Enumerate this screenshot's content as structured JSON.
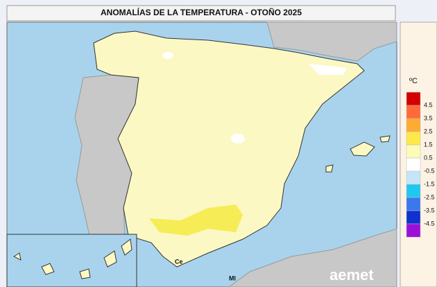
{
  "header": {
    "title": "ANOMALÍAS DE LA TEMPERATURA - OTOÑO 2025"
  },
  "legend": {
    "unit": "ºC",
    "colors": [
      "#d40000",
      "#ff6a3a",
      "#ffaa33",
      "#ffe84a",
      "#fdfbb8",
      "#ffffff",
      "#c4e6f8",
      "#1ec8f0",
      "#3a78f0",
      "#1030d0",
      "#9a10d8"
    ],
    "labels": [
      "4.5",
      "3.5",
      "2.5",
      "1.5",
      "0.5",
      "-0.5",
      "-1.5",
      "-2.5",
      "-3.5",
      "-4.5"
    ]
  },
  "map": {
    "places": [
      "Ce",
      "Ml"
    ],
    "logo": "aemet"
  }
}
